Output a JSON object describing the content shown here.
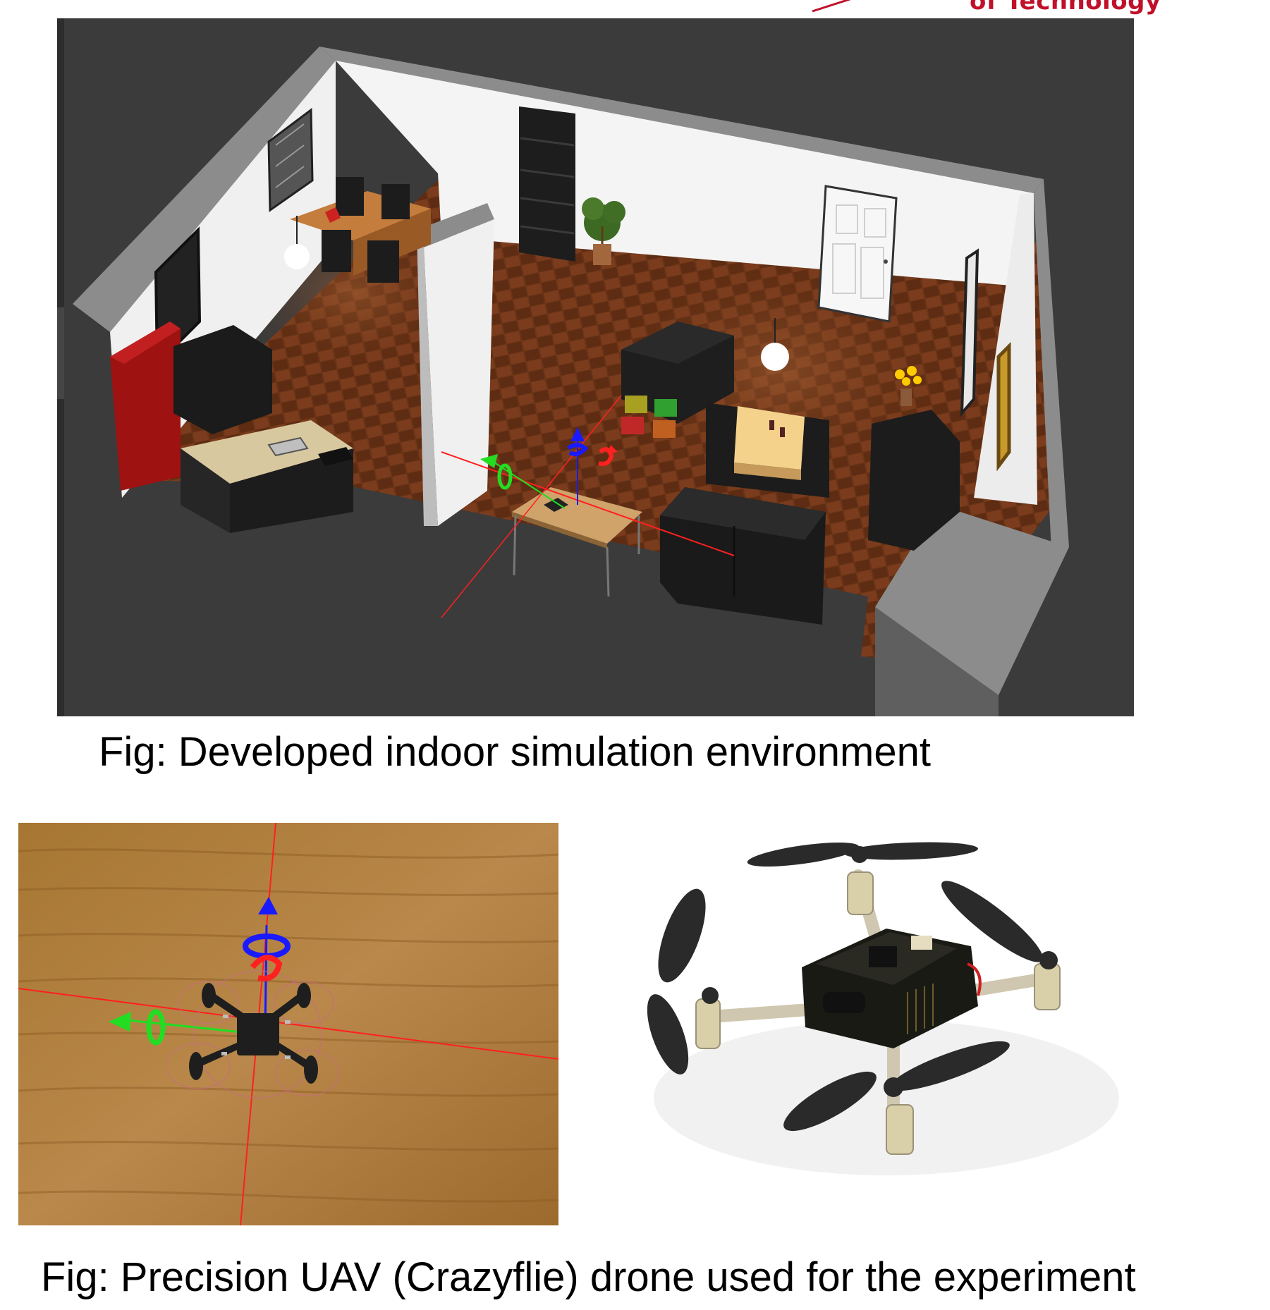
{
  "header": {
    "logo_text": "of Technology",
    "logo_color": "#c0102a"
  },
  "figure_top": {
    "caption": "Fig: Developed indoor simulation environment",
    "scene": {
      "background": "#3a3a3a",
      "floor_color": "#6b3418",
      "wall_color": "#f2f2f2",
      "wall_top_color": "#8c8c8c",
      "axis_colors": {
        "x": "#ff2020",
        "y": "#22dd22",
        "z": "#1a1aff"
      }
    }
  },
  "figure_bottom": {
    "caption": "Fig: Precision UAV (Crazyflie) drone used for the experiment",
    "sim_view": {
      "background": "#a87838"
    },
    "photo": {
      "background": "#ffffff"
    }
  }
}
